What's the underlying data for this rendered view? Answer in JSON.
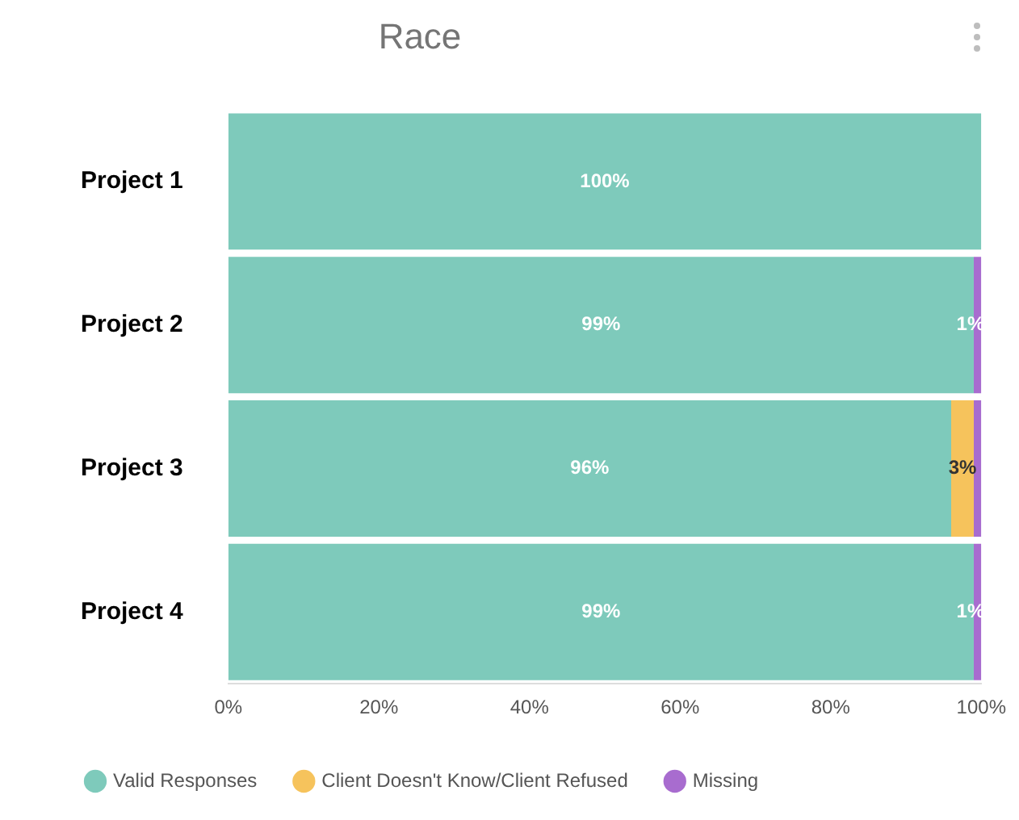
{
  "chart_data": {
    "type": "bar",
    "title": "Race",
    "orientation": "horizontal",
    "stacked": true,
    "categories": [
      "Project 1",
      "Project 2",
      "Project 3",
      "Project 4"
    ],
    "series": [
      {
        "name": "Valid Responses",
        "color": "#7ecabb",
        "values": [
          100,
          99,
          96,
          99
        ],
        "value_labels": [
          "100%",
          "99%",
          "96%",
          "99%"
        ]
      },
      {
        "name": "Client Doesn't Know/Client Refused",
        "color": "#f6c35c",
        "values": [
          0,
          0,
          3,
          0
        ],
        "value_labels": [
          null,
          null,
          "3%",
          null
        ]
      },
      {
        "name": "Missing",
        "color": "#a86ccf",
        "values": [
          0,
          1,
          1,
          1
        ],
        "value_labels": [
          null,
          "1%",
          null,
          "1%"
        ]
      }
    ],
    "xlim": [
      0,
      100
    ],
    "xticks": [
      {
        "value": 0,
        "label": "0%"
      },
      {
        "value": 20,
        "label": "20%"
      },
      {
        "value": 40,
        "label": "40%"
      },
      {
        "value": 60,
        "label": "60%"
      },
      {
        "value": 80,
        "label": "80%"
      },
      {
        "value": 100,
        "label": "100%"
      }
    ],
    "grid": false,
    "legend": "bottom left"
  }
}
